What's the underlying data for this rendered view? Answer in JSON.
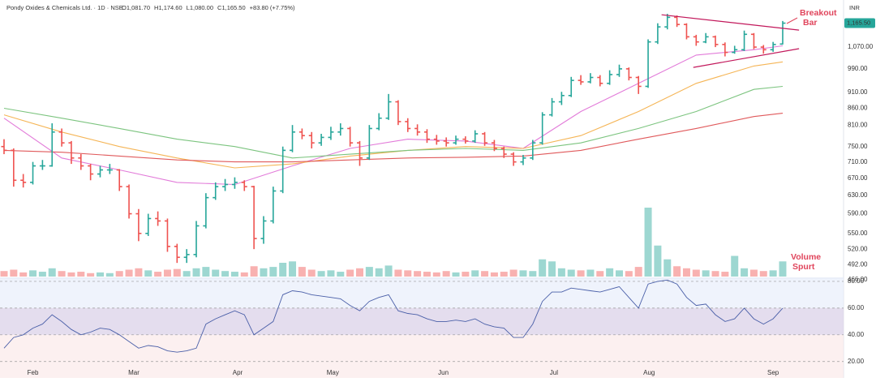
{
  "chart_data": {
    "type": "ohlc",
    "title": "Pondy Oxides & Chemicals Ltd. · 1D · NSE",
    "ohlc_labels": [
      "O1,081.70",
      "H1,174.60",
      "L1,080.00",
      "C1,165.50",
      "+83.80 (+7.75%)"
    ],
    "currency": "INR",
    "log_scale": true,
    "up_color": "#26a69a",
    "down_color": "#ef5350",
    "open": [
      750,
      740,
      665,
      660,
      700,
      700,
      790,
      760,
      720,
      700,
      680,
      690,
      690,
      650,
      590,
      550,
      580,
      575,
      525,
      505,
      510,
      565,
      625,
      650,
      655,
      660,
      650,
      540,
      575,
      640,
      740,
      790,
      780,
      760,
      775,
      790,
      800,
      760,
      720,
      800,
      830,
      880,
      820,
      800,
      790,
      770,
      765,
      760,
      770,
      765,
      785,
      760,
      745,
      730,
      710,
      720,
      760,
      840,
      880,
      900,
      950,
      945,
      960,
      940,
      970,
      990,
      960,
      930,
      1090,
      1150,
      1190,
      1160,
      1110,
      1090,
      1110,
      1080,
      1050,
      1060,
      1120,
      1070,
      1060,
      1081.7
    ],
    "high": [
      770,
      745,
      680,
      710,
      715,
      815,
      800,
      765,
      730,
      705,
      700,
      705,
      692,
      655,
      600,
      590,
      595,
      580,
      530,
      520,
      575,
      635,
      660,
      668,
      672,
      665,
      652,
      585,
      650,
      750,
      810,
      800,
      790,
      785,
      805,
      815,
      805,
      765,
      810,
      845,
      905,
      885,
      830,
      812,
      798,
      782,
      775,
      780,
      778,
      795,
      790,
      768,
      750,
      735,
      728,
      768,
      848,
      892,
      912,
      962,
      968,
      975,
      968,
      985,
      1005,
      995,
      965,
      1100,
      1165,
      1205,
      1198,
      1165,
      1118,
      1125,
      1115,
      1088,
      1075,
      1135,
      1125,
      1078,
      1090,
      1174.6
    ],
    "low": [
      730,
      650,
      648,
      655,
      690,
      698,
      750,
      705,
      690,
      665,
      672,
      680,
      640,
      580,
      535,
      545,
      565,
      515,
      495,
      495,
      505,
      560,
      620,
      640,
      645,
      640,
      520,
      530,
      570,
      635,
      735,
      770,
      745,
      752,
      768,
      780,
      750,
      700,
      715,
      795,
      825,
      810,
      790,
      780,
      760,
      755,
      750,
      755,
      758,
      760,
      752,
      738,
      720,
      700,
      702,
      715,
      755,
      835,
      870,
      895,
      935,
      940,
      930,
      935,
      962,
      950,
      905,
      925,
      1082,
      1140,
      1150,
      1100,
      1075,
      1085,
      1070,
      1035,
      1045,
      1055,
      1062,
      1045,
      1052,
      1080
    ],
    "close": [
      740,
      665,
      660,
      700,
      700,
      790,
      760,
      720,
      700,
      680,
      690,
      690,
      650,
      590,
      550,
      580,
      575,
      525,
      505,
      510,
      565,
      625,
      650,
      655,
      660,
      650,
      540,
      575,
      640,
      740,
      790,
      780,
      760,
      775,
      790,
      800,
      760,
      720,
      800,
      830,
      880,
      820,
      800,
      790,
      770,
      765,
      760,
      770,
      765,
      785,
      760,
      745,
      730,
      710,
      720,
      760,
      840,
      880,
      900,
      950,
      945,
      960,
      940,
      970,
      990,
      960,
      930,
      1090,
      1150,
      1190,
      1160,
      1110,
      1090,
      1110,
      1080,
      1050,
      1060,
      1120,
      1070,
      1060,
      1080,
      1165.5
    ],
    "xlim": [
      -0.42,
      87.33
    ],
    "xticks": [
      {
        "value": 3,
        "label": "Feb"
      },
      {
        "value": 13.5,
        "label": "Mar"
      },
      {
        "value": 24.3,
        "label": "Apr"
      },
      {
        "value": 34.2,
        "label": "May"
      },
      {
        "value": 45.7,
        "label": "Jun"
      },
      {
        "value": 57.2,
        "label": "Jul"
      },
      {
        "value": 67.1,
        "label": "Aug"
      },
      {
        "value": 80,
        "label": "Sep"
      }
    ],
    "ylim": [
      466,
      1237
    ],
    "yticks": [
      {
        "value": 1070,
        "label": "1,070.00"
      },
      {
        "value": 990,
        "label": "990.00"
      },
      {
        "value": 910,
        "label": "910.00"
      },
      {
        "value": 860,
        "label": "860.00"
      },
      {
        "value": 810,
        "label": "810.00"
      },
      {
        "value": 750,
        "label": "750.00"
      },
      {
        "value": 710,
        "label": "710.00"
      },
      {
        "value": 670,
        "label": "670.00"
      },
      {
        "value": 630,
        "label": "630.00"
      },
      {
        "value": 590,
        "label": "590.00"
      },
      {
        "value": 550,
        "label": "550.00"
      },
      {
        "value": 520,
        "label": "520.00"
      },
      {
        "value": 492,
        "label": "492.00"
      },
      {
        "value": 466,
        "label": "466.00"
      }
    ],
    "last_price": {
      "value": 1165.5,
      "label": "1,165.50"
    },
    "moving_averages": [
      {
        "color": "#e27bd9",
        "x": [
          0,
          6,
          12,
          18,
          24,
          30,
          36,
          42,
          48,
          54,
          60,
          66,
          72,
          78,
          81
        ],
        "values": [
          830,
          720,
          690,
          660,
          655,
          700,
          745,
          770,
          765,
          745,
          850,
          940,
          1040,
          1060,
          1075
        ]
      },
      {
        "color": "#f5b556",
        "x": [
          0,
          6,
          12,
          18,
          24,
          30,
          36,
          42,
          48,
          54,
          60,
          66,
          72,
          78,
          81
        ],
        "values": [
          840,
          790,
          750,
          720,
          695,
          705,
          725,
          740,
          750,
          745,
          780,
          850,
          940,
          1000,
          1015
        ]
      },
      {
        "color": "#7cc47f",
        "x": [
          0,
          6,
          12,
          18,
          24,
          30,
          36,
          42,
          48,
          54,
          60,
          66,
          72,
          78,
          81
        ],
        "values": [
          860,
          830,
          800,
          770,
          750,
          720,
          730,
          740,
          745,
          740,
          760,
          800,
          850,
          920,
          930
        ]
      },
      {
        "color": "#e0595b",
        "x": [
          0,
          6,
          12,
          18,
          24,
          30,
          36,
          42,
          48,
          54,
          60,
          66,
          72,
          78,
          81
        ],
        "values": [
          740,
          735,
          725,
          715,
          710,
          710,
          715,
          720,
          722,
          725,
          740,
          770,
          800,
          835,
          845
        ]
      }
    ],
    "volume": {
      "values": [
        8,
        10,
        6,
        9,
        7,
        12,
        8,
        6,
        7,
        5,
        6,
        5,
        8,
        10,
        12,
        9,
        7,
        10,
        11,
        8,
        12,
        14,
        10,
        8,
        7,
        6,
        15,
        12,
        14,
        20,
        22,
        14,
        10,
        8,
        9,
        7,
        10,
        12,
        14,
        12,
        16,
        10,
        9,
        8,
        7,
        6,
        8,
        6,
        7,
        9,
        8,
        6,
        7,
        10,
        9,
        8,
        25,
        22,
        12,
        10,
        9,
        10,
        8,
        12,
        9,
        8,
        14,
        100,
        45,
        25,
        15,
        12,
        10,
        9,
        8,
        7,
        30,
        12,
        10,
        8,
        9,
        22
      ]
    },
    "rsi": {
      "color": "#4a5fa8",
      "values": [
        30,
        38,
        40,
        45,
        48,
        55,
        50,
        44,
        40,
        42,
        45,
        44,
        40,
        35,
        30,
        32,
        31,
        28,
        27,
        28,
        30,
        48,
        52,
        55,
        58,
        55,
        40,
        45,
        50,
        70,
        73,
        72,
        70,
        69,
        68,
        67,
        62,
        58,
        65,
        68,
        70,
        58,
        56,
        55,
        52,
        50,
        50,
        51,
        50,
        52,
        48,
        46,
        45,
        38,
        38,
        48,
        65,
        72,
        72,
        75,
        74,
        73,
        72,
        74,
        76,
        68,
        60,
        78,
        80,
        81,
        78,
        68,
        62,
        63,
        55,
        50,
        52,
        60,
        52,
        48,
        52,
        60
      ],
      "ylim": [
        15,
        83
      ],
      "yticks": [
        {
          "value": 80,
          "label": "80.00"
        },
        {
          "value": 60,
          "label": "60.00"
        },
        {
          "value": 40,
          "label": "40.00"
        },
        {
          "value": 20,
          "label": "20.00"
        }
      ]
    },
    "trendlines": {
      "color": "#c2185b",
      "lines": [
        {
          "x": [
            68.4,
            82.7
          ],
          "y": [
            1201,
            1137
          ]
        },
        {
          "x": [
            71.7,
            82.7
          ],
          "y": [
            995,
            1064
          ]
        }
      ]
    },
    "annotations": [
      [
        "Breakout",
        "Bar"
      ],
      [
        "Volume",
        "Spurt"
      ]
    ]
  }
}
